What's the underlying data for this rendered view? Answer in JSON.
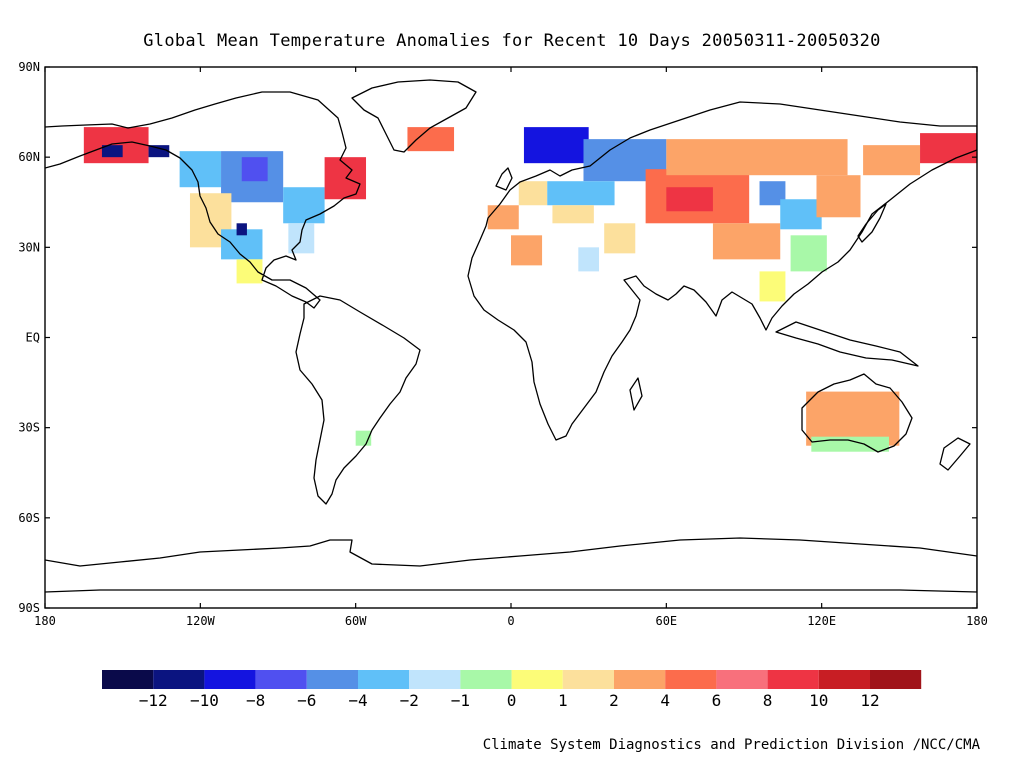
{
  "title": "Global Mean Temperature Anomalies for Recent 10 Days  20050311-20050320",
  "credit": "Climate System Diagnostics and Prediction Division /NCC/CMA",
  "lat_labels": [
    {
      "lat": 90,
      "text": "90N"
    },
    {
      "lat": 60,
      "text": "60N"
    },
    {
      "lat": 30,
      "text": "30N"
    },
    {
      "lat": 0,
      "text": "EQ"
    },
    {
      "lat": -30,
      "text": "30S"
    },
    {
      "lat": -60,
      "text": "60S"
    },
    {
      "lat": -90,
      "text": "90S"
    }
  ],
  "lon_labels": [
    {
      "lon": -180,
      "text": "180"
    },
    {
      "lon": -120,
      "text": "120W"
    },
    {
      "lon": -60,
      "text": "60W"
    },
    {
      "lon": 0,
      "text": "0"
    },
    {
      "lon": 60,
      "text": "60E"
    },
    {
      "lon": 120,
      "text": "120E"
    },
    {
      "lon": 180,
      "text": "180"
    }
  ],
  "colorbar": {
    "colors": [
      "#0a0a4a",
      "#0b1480",
      "#1414e0",
      "#5050f0",
      "#5590e6",
      "#60c0f8",
      "#c0e4fc",
      "#a8f8a8",
      "#fcfc78",
      "#fce09c",
      "#fca468",
      "#fc6c4c",
      "#f8707c",
      "#ee3444",
      "#c81e24",
      "#a0141a"
    ],
    "labels": [
      "-12",
      "-10",
      "-8",
      "-6",
      "-4",
      "-2",
      "-1",
      "0",
      "1",
      "2",
      "4",
      "6",
      "8",
      "10",
      "12"
    ]
  },
  "anomaly_regions": [
    {
      "name": "alaska",
      "lon": [
        -165,
        -140
      ],
      "lat": [
        58,
        70
      ],
      "color": "#ee3444"
    },
    {
      "name": "alaska-cold-core",
      "lon": [
        -158,
        -150
      ],
      "lat": [
        60,
        64
      ],
      "color": "#0b1480"
    },
    {
      "name": "yukon-cold-core",
      "lon": [
        -140,
        -132
      ],
      "lat": [
        60,
        64
      ],
      "color": "#0b1480"
    },
    {
      "name": "canada-west",
      "lon": [
        -128,
        -112
      ],
      "lat": [
        50,
        62
      ],
      "color": "#60c0f8"
    },
    {
      "name": "canada-central",
      "lon": [
        -112,
        -88
      ],
      "lat": [
        45,
        62
      ],
      "color": "#5590e6"
    },
    {
      "name": "hudson-core",
      "lon": [
        -104,
        -94
      ],
      "lat": [
        52,
        60
      ],
      "color": "#5050f0"
    },
    {
      "name": "great-lakes",
      "lon": [
        -88,
        -72
      ],
      "lat": [
        38,
        50
      ],
      "color": "#60c0f8"
    },
    {
      "name": "us-east",
      "lon": [
        -86,
        -76
      ],
      "lat": [
        28,
        38
      ],
      "color": "#c0e4fc"
    },
    {
      "name": "us-west",
      "lon": [
        -124,
        -108
      ],
      "lat": [
        30,
        48
      ],
      "color": "#fce09c"
    },
    {
      "name": "us-southwest",
      "lon": [
        -112,
        -96
      ],
      "lat": [
        26,
        36
      ],
      "color": "#60c0f8"
    },
    {
      "name": "colorado-core",
      "lon": [
        -106,
        -102
      ],
      "lat": [
        34,
        38
      ],
      "color": "#0b1480"
    },
    {
      "name": "mexico",
      "lon": [
        -106,
        -96
      ],
      "lat": [
        18,
        26
      ],
      "color": "#fcfc78"
    },
    {
      "name": "labrador",
      "lon": [
        -72,
        -56
      ],
      "lat": [
        46,
        60
      ],
      "color": "#ee3444"
    },
    {
      "name": "greenland-east",
      "lon": [
        -40,
        -22
      ],
      "lat": [
        62,
        70
      ],
      "color": "#fc6c4c"
    },
    {
      "name": "iberia",
      "lon": [
        -9,
        3
      ],
      "lat": [
        36,
        44
      ],
      "color": "#fca468"
    },
    {
      "name": "west-europe",
      "lon": [
        3,
        14
      ],
      "lat": [
        44,
        52
      ],
      "color": "#fce09c"
    },
    {
      "name": "scandinavia",
      "lon": [
        5,
        30
      ],
      "lat": [
        58,
        70
      ],
      "color": "#1414e0"
    },
    {
      "name": "russia-west",
      "lon": [
        28,
        60
      ],
      "lat": [
        52,
        66
      ],
      "color": "#5590e6"
    },
    {
      "name": "east-europe",
      "lon": [
        14,
        40
      ],
      "lat": [
        44,
        52
      ],
      "color": "#60c0f8"
    },
    {
      "name": "balkans",
      "lon": [
        16,
        32
      ],
      "lat": [
        38,
        44
      ],
      "color": "#fce09c"
    },
    {
      "name": "north-africa",
      "lon": [
        0,
        12
      ],
      "lat": [
        24,
        34
      ],
      "color": "#fca468"
    },
    {
      "name": "egypt",
      "lon": [
        26,
        34
      ],
      "lat": [
        22,
        30
      ],
      "color": "#c0e4fc"
    },
    {
      "name": "middle-east",
      "lon": [
        36,
        48
      ],
      "lat": [
        28,
        38
      ],
      "color": "#fce09c"
    },
    {
      "name": "central-asia",
      "lon": [
        52,
        92
      ],
      "lat": [
        38,
        56
      ],
      "color": "#fc6c4c"
    },
    {
      "name": "kazakh-core",
      "lon": [
        60,
        78
      ],
      "lat": [
        42,
        50
      ],
      "color": "#ee3444"
    },
    {
      "name": "siberia",
      "lon": [
        60,
        130
      ],
      "lat": [
        54,
        66
      ],
      "color": "#fca468"
    },
    {
      "name": "tibet",
      "lon": [
        78,
        104
      ],
      "lat": [
        26,
        38
      ],
      "color": "#fca468"
    },
    {
      "name": "mongolia-cold",
      "lon": [
        96,
        106
      ],
      "lat": [
        44,
        52
      ],
      "color": "#5590e6"
    },
    {
      "name": "china-north",
      "lon": [
        104,
        120
      ],
      "lat": [
        36,
        46
      ],
      "color": "#60c0f8"
    },
    {
      "name": "china-east",
      "lon": [
        108,
        122
      ],
      "lat": [
        22,
        34
      ],
      "color": "#a8f8a8"
    },
    {
      "name": "manchuria",
      "lon": [
        118,
        135
      ],
      "lat": [
        40,
        54
      ],
      "color": "#fca468"
    },
    {
      "name": "far-east",
      "lon": [
        136,
        158
      ],
      "lat": [
        54,
        64
      ],
      "color": "#fca468"
    },
    {
      "name": "kamchatka",
      "lon": [
        158,
        180
      ],
      "lat": [
        58,
        68
      ],
      "color": "#ee3444"
    },
    {
      "name": "indochina",
      "lon": [
        96,
        106
      ],
      "lat": [
        12,
        22
      ],
      "color": "#fcfc78"
    },
    {
      "name": "australia",
      "lon": [
        114,
        150
      ],
      "lat": [
        -36,
        -18
      ],
      "color": "#fca468"
    },
    {
      "name": "australia-south",
      "lon": [
        116,
        146
      ],
      "lat": [
        -38,
        -33
      ],
      "color": "#a8f8a8"
    },
    {
      "name": "argentina",
      "lon": [
        -60,
        -54
      ],
      "lat": [
        -36,
        -31
      ],
      "color": "#a8f8a8"
    }
  ]
}
